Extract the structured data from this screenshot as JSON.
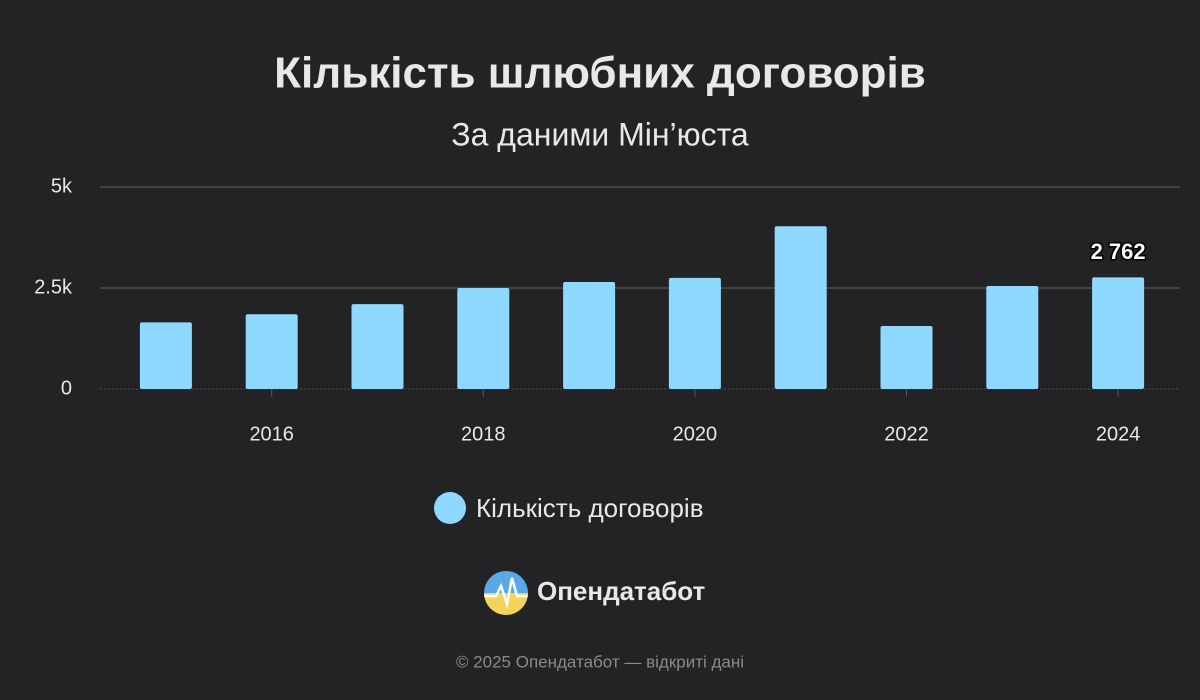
{
  "chart_data": {
    "type": "bar",
    "title": "Кількість шлюбних договорів",
    "subtitle": "За даними Мін’юста",
    "categories": [
      null,
      "2016",
      null,
      "2018",
      null,
      "2020",
      null,
      "2022",
      null,
      "2024"
    ],
    "series": [
      {
        "name": "Кількість договорів",
        "color": "#8fd8ff",
        "values": [
          1650,
          1850,
          2100,
          2500,
          2650,
          2750,
          4030,
          1560,
          2550,
          2762
        ],
        "value_labels": [
          null,
          null,
          null,
          null,
          null,
          null,
          null,
          null,
          null,
          "2 762"
        ]
      }
    ],
    "ylim": [
      0,
      5000
    ],
    "yticks": [
      0,
      {
        "value": 2500,
        "label": "2.5k"
      },
      {
        "value": 5000,
        "label": "5k"
      }
    ],
    "grid": true
  },
  "brand": "Опендатабот",
  "footer": "© 2025 Опендатабот — відкриті дані"
}
